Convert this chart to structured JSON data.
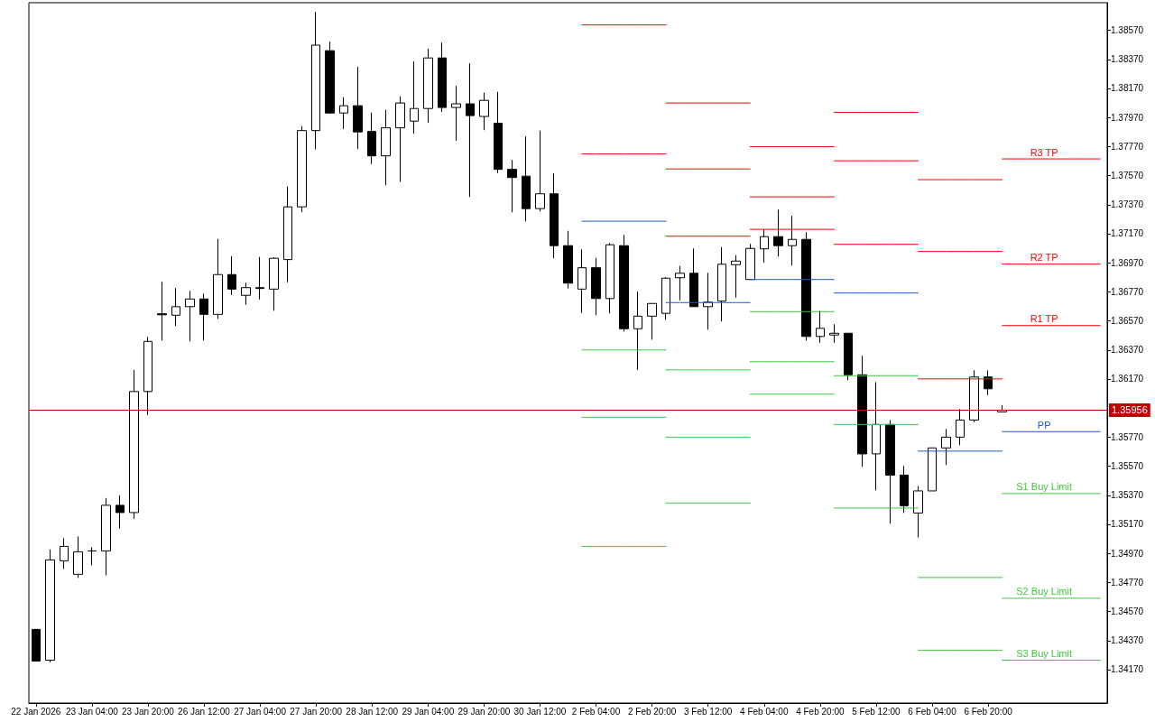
{
  "chart_data": {
    "type": "candlestick",
    "color": "#000000",
    "grid": false,
    "legend": false,
    "marker": "none",
    "line_style": "solid",
    "categories": [
      "22 Jan 2026",
      null,
      null,
      null,
      "23 Jan 04:00",
      null,
      null,
      null,
      "23 Jan 20:00",
      null,
      null,
      null,
      "26 Jan 12:00",
      null,
      null,
      null,
      "27 Jan 04:00",
      null,
      null,
      null,
      "27 Jan 20:00",
      null,
      null,
      null,
      "28 Jan 12:00",
      null,
      null,
      null,
      "29 Jan 04:00",
      null,
      null,
      null,
      "29 Jan 20:00",
      null,
      null,
      null,
      "30 Jan 12:00",
      null,
      null,
      null,
      "2 Feb 04:00",
      null,
      null,
      null,
      "2 Feb 20:00",
      null,
      null,
      null,
      "3 Feb 12:00",
      null,
      null,
      null,
      "4 Feb 04:00",
      null,
      null,
      null,
      "4 Feb 20:00",
      null,
      null,
      null,
      "5 Feb 12:00",
      null,
      null,
      null,
      "6 Feb 04:00",
      null,
      null,
      null,
      "6 Feb 20:00",
      null,
      null,
      null,
      null,
      null,
      null,
      null,
      null
    ],
    "ylim": [
      1.3394,
      1.3876
    ],
    "yticks": [
      {
        "value": 1.3417,
        "label": "1.34170"
      },
      {
        "value": 1.3437,
        "label": "1.34370"
      },
      {
        "value": 1.3457,
        "label": "1.34570"
      },
      {
        "value": 1.3477,
        "label": "1.34770"
      },
      {
        "value": 1.3497,
        "label": "1.34970"
      },
      {
        "value": 1.3517,
        "label": "1.35170"
      },
      {
        "value": 1.3537,
        "label": "1.35370"
      },
      {
        "value": 1.3557,
        "label": "1.35570"
      },
      {
        "value": 1.3577,
        "label": "1.35770"
      },
      {
        "value": 1.3617,
        "label": "1.36170"
      },
      {
        "value": 1.3637,
        "label": "1.36370"
      },
      {
        "value": 1.3657,
        "label": "1.36570"
      },
      {
        "value": 1.3677,
        "label": "1.36770"
      },
      {
        "value": 1.3697,
        "label": "1.36970"
      },
      {
        "value": 1.3717,
        "label": "1.37170"
      },
      {
        "value": 1.3737,
        "label": "1.37370"
      },
      {
        "value": 1.3757,
        "label": "1.37570"
      },
      {
        "value": 1.3777,
        "label": "1.37770"
      },
      {
        "value": 1.3797,
        "label": "1.37970"
      },
      {
        "value": 1.3817,
        "label": "1.38170"
      },
      {
        "value": 1.3837,
        "label": "1.38370"
      },
      {
        "value": 1.3857,
        "label": "1.38570"
      }
    ],
    "ohlc": [
      [
        1.34447,
        1.3445,
        1.34226,
        1.34229
      ],
      [
        1.34235,
        1.34997,
        1.3422,
        1.34925
      ],
      [
        1.34919,
        1.35074,
        1.34863,
        1.35018
      ],
      [
        1.34826,
        1.35087,
        1.34801,
        1.34981
      ],
      [
        1.34987,
        1.35012,
        1.34888,
        1.34987
      ],
      [
        1.34987,
        1.35351,
        1.34819,
        1.35301
      ],
      [
        1.35301,
        1.35369,
        1.3514,
        1.35251
      ],
      [
        1.35251,
        1.36233,
        1.35208,
        1.36084
      ],
      [
        1.36084,
        1.3646,
        1.35923,
        1.36429
      ],
      [
        1.36619,
        1.36839,
        1.36435,
        1.36612
      ],
      [
        1.36609,
        1.36796,
        1.36535,
        1.36668
      ],
      [
        1.36668,
        1.36777,
        1.36429,
        1.36721
      ],
      [
        1.36721,
        1.36758,
        1.36435,
        1.36615
      ],
      [
        1.36615,
        1.37134,
        1.36584,
        1.36889
      ],
      [
        1.36889,
        1.37016,
        1.36749,
        1.36789
      ],
      [
        1.36746,
        1.36833,
        1.36681,
        1.36799
      ],
      [
        1.36799,
        1.3701,
        1.36718,
        1.36793
      ],
      [
        1.36789,
        1.37007,
        1.3664,
        1.37001
      ],
      [
        1.36992,
        1.37495,
        1.36836,
        1.37355
      ],
      [
        1.37355,
        1.37911,
        1.37318,
        1.3788
      ],
      [
        1.3788,
        1.38697,
        1.3775,
        1.38468
      ],
      [
        1.3843,
        1.38492,
        1.37995,
        1.38001
      ],
      [
        1.38001,
        1.3811,
        1.3789,
        1.38051
      ],
      [
        1.38051,
        1.38318,
        1.37753,
        1.37871
      ],
      [
        1.37874,
        1.38004,
        1.3765,
        1.37706
      ],
      [
        1.37706,
        1.38023,
        1.37504,
        1.37899
      ],
      [
        1.37899,
        1.38116,
        1.37526,
        1.3807
      ],
      [
        1.37945,
        1.38356,
        1.37858,
        1.38032
      ],
      [
        1.38032,
        1.38443,
        1.37933,
        1.3838
      ],
      [
        1.3838,
        1.38486,
        1.38008,
        1.38039
      ],
      [
        1.38039,
        1.38188,
        1.37809,
        1.38064
      ],
      [
        1.38064,
        1.38343,
        1.37423,
        1.37983
      ],
      [
        1.37977,
        1.38141,
        1.37883,
        1.38088
      ],
      [
        1.3793,
        1.38147,
        1.37588,
        1.37613
      ],
      [
        1.37613,
        1.37678,
        1.37318,
        1.37557
      ],
      [
        1.37566,
        1.3784,
        1.37256,
        1.37343
      ],
      [
        1.37343,
        1.3788,
        1.37324,
        1.37445
      ],
      [
        1.37445,
        1.37585,
        1.37001,
        1.37088
      ],
      [
        1.37088,
        1.3719,
        1.36793,
        1.3683
      ],
      [
        1.36789,
        1.37063,
        1.36625,
        1.36936
      ],
      [
        1.36936,
        1.37004,
        1.36609,
        1.36724
      ],
      [
        1.36724,
        1.37106,
        1.36622,
        1.37094
      ],
      [
        1.37088,
        1.37162,
        1.36497,
        1.36516
      ],
      [
        1.36516,
        1.36771,
        1.36233,
        1.36603
      ],
      [
        1.36603,
        1.3669,
        1.36441,
        1.3669
      ],
      [
        1.36622,
        1.3687,
        1.36578,
        1.36864
      ],
      [
        1.36867,
        1.36948,
        1.36712,
        1.36898
      ],
      [
        1.36898,
        1.37069,
        1.36668,
        1.36668
      ],
      [
        1.36668,
        1.36901,
        1.3651,
        1.36699
      ],
      [
        1.36706,
        1.37078,
        1.36566,
        1.3696
      ],
      [
        1.36957,
        1.37022,
        1.3673,
        1.36982
      ],
      [
        1.36855,
        1.371,
        1.36855,
        1.37069
      ],
      [
        1.37066,
        1.372,
        1.3697,
        1.3715
      ],
      [
        1.3715,
        1.37336,
        1.37013,
        1.37088
      ],
      [
        1.37088,
        1.37293,
        1.36951,
        1.37131
      ],
      [
        1.37131,
        1.37181,
        1.36435,
        1.36463
      ],
      [
        1.36463,
        1.3664,
        1.3642,
        1.36519
      ],
      [
        1.36473,
        1.36547,
        1.3642,
        1.36485
      ],
      [
        1.36485,
        1.36485,
        1.36162,
        1.36199
      ],
      [
        1.36199,
        1.3633,
        1.35565,
        1.35655
      ],
      [
        1.35655,
        1.36149,
        1.35404,
        1.35857
      ],
      [
        1.35857,
        1.35888,
        1.35174,
        1.35509
      ],
      [
        1.35509,
        1.35571,
        1.35248,
        1.35298
      ],
      [
        1.35248,
        1.35432,
        1.3508,
        1.354
      ],
      [
        1.354,
        1.35696,
        1.354,
        1.35696
      ],
      [
        1.35696,
        1.35826,
        1.35578,
        1.3577
      ],
      [
        1.3577,
        1.35963,
        1.35714,
        1.35888
      ],
      [
        1.35888,
        1.3623,
        1.35873,
        1.36184
      ],
      [
        1.36184,
        1.3623,
        1.36059,
        1.36103
      ],
      [
        1.35944,
        1.35991,
        1.35944,
        1.35956
      ],
      null,
      null,
      null,
      null,
      null,
      null,
      null
    ],
    "series": [
      {
        "type": "line",
        "color": "#ff0000",
        "values": [
          null,
          null,
          null,
          null,
          null,
          null,
          null,
          null,
          null,
          null,
          null,
          null,
          null,
          null,
          null,
          null,
          null,
          null,
          null,
          null,
          null,
          null,
          null,
          null,
          null,
          null,
          null,
          null,
          null,
          null,
          null,
          null,
          null,
          null,
          null,
          null,
          null,
          null,
          null,
          null,
          null,
          null,
          null,
          null,
          null,
          null,
          null,
          null,
          null,
          null,
          null,
          1.37769,
          1.37769,
          1.37769,
          1.37769,
          1.37769,
          1.37769,
          1.37769,
          null,
          null,
          null,
          null,
          null,
          1.37542,
          1.37542,
          1.37542,
          1.37542,
          1.37542,
          1.37542,
          1.37542,
          null,
          null,
          null,
          null,
          null,
          null,
          null
        ]
      },
      {
        "type": "line",
        "name": "R3 TP",
        "color": "#ff0000",
        "values": [
          null,
          null,
          null,
          null,
          null,
          null,
          null,
          null,
          null,
          null,
          null,
          null,
          null,
          null,
          null,
          null,
          null,
          null,
          null,
          null,
          null,
          null,
          null,
          null,
          null,
          null,
          null,
          null,
          null,
          null,
          null,
          null,
          null,
          null,
          null,
          null,
          null,
          null,
          null,
          null,
          null,
          null,
          null,
          null,
          null,
          1.3807,
          1.3807,
          1.3807,
          1.3807,
          1.3807,
          1.3807,
          1.3807,
          null,
          null,
          null,
          null,
          null,
          1.38005,
          1.38005,
          1.38005,
          1.38005,
          1.38005,
          1.38005,
          1.38005,
          null,
          null,
          null,
          null,
          null,
          1.37685,
          1.37685,
          1.37685,
          1.37685,
          1.37685,
          1.37685,
          1.37685,
          1.37685
        ]
      },
      {
        "type": "line",
        "color": "#ff0000",
        "values": [
          null,
          null,
          null,
          null,
          null,
          null,
          null,
          null,
          null,
          null,
          null,
          null,
          null,
          null,
          null,
          null,
          null,
          null,
          null,
          null,
          null,
          null,
          null,
          null,
          null,
          null,
          null,
          null,
          null,
          null,
          null,
          null,
          null,
          null,
          null,
          null,
          null,
          null,
          null,
          1.38607,
          1.38607,
          1.38607,
          1.38607,
          1.38607,
          1.38607,
          1.38607,
          null,
          null,
          null,
          null,
          null,
          1.37424,
          1.37424,
          1.37424,
          1.37424,
          1.37424,
          1.37424,
          1.37424,
          null,
          null,
          null,
          null,
          null,
          1.37048,
          1.37048,
          1.37048,
          1.37048,
          1.37048,
          1.37048,
          1.37048,
          null,
          null,
          null,
          null,
          null,
          null,
          null
        ]
      },
      {
        "type": "line",
        "name": "R2 TP",
        "color": "#ff0000",
        "values": [
          null,
          null,
          null,
          null,
          null,
          null,
          null,
          null,
          null,
          null,
          null,
          null,
          null,
          null,
          null,
          null,
          null,
          null,
          null,
          null,
          null,
          null,
          null,
          null,
          null,
          null,
          null,
          null,
          null,
          null,
          null,
          null,
          null,
          null,
          null,
          null,
          null,
          null,
          null,
          null,
          null,
          null,
          null,
          null,
          null,
          1.37616,
          1.37616,
          1.37616,
          1.37616,
          1.37616,
          1.37616,
          1.37616,
          null,
          null,
          null,
          null,
          null,
          1.37672,
          1.37672,
          1.37672,
          1.37672,
          1.37672,
          1.37672,
          1.37672,
          null,
          null,
          null,
          null,
          null,
          1.36961,
          1.36961,
          1.36961,
          1.36961,
          1.36961,
          1.36961,
          1.36961,
          1.36961
        ]
      },
      {
        "type": "line",
        "color": "#ff0000",
        "values": [
          null,
          null,
          null,
          null,
          null,
          null,
          null,
          null,
          null,
          null,
          null,
          null,
          null,
          null,
          null,
          null,
          null,
          null,
          null,
          null,
          null,
          null,
          null,
          null,
          null,
          null,
          null,
          null,
          null,
          null,
          null,
          null,
          null,
          null,
          null,
          null,
          null,
          null,
          null,
          1.37719,
          1.37719,
          1.37719,
          1.37719,
          1.37719,
          1.37719,
          1.37719,
          null,
          null,
          null,
          null,
          null,
          1.372,
          1.372,
          1.372,
          1.372,
          1.372,
          1.372,
          1.372,
          null,
          null,
          null,
          null,
          null,
          1.36171,
          1.36171,
          1.36171,
          1.36171,
          1.36171,
          1.36171,
          1.36171,
          null,
          null,
          null,
          null,
          null,
          null,
          null
        ]
      },
      {
        "type": "line",
        "name": "R1 TP",
        "color": "#ff0000",
        "values": [
          null,
          null,
          null,
          null,
          null,
          null,
          null,
          null,
          null,
          null,
          null,
          null,
          null,
          null,
          null,
          null,
          null,
          null,
          null,
          null,
          null,
          null,
          null,
          null,
          null,
          null,
          null,
          null,
          null,
          null,
          null,
          null,
          null,
          null,
          null,
          null,
          null,
          null,
          null,
          null,
          null,
          null,
          null,
          null,
          null,
          1.37153,
          1.37153,
          1.37153,
          1.37153,
          1.37153,
          1.37153,
          1.37153,
          null,
          null,
          null,
          null,
          null,
          1.37097,
          1.37097,
          1.37097,
          1.37097,
          1.37097,
          1.37097,
          1.37097,
          null,
          null,
          null,
          null,
          null,
          1.36538,
          1.36538,
          1.36538,
          1.36538,
          1.36538,
          1.36538,
          1.36538,
          1.36538
        ]
      },
      {
        "type": "line",
        "color": "#1e5ad2",
        "values": [
          null,
          null,
          null,
          null,
          null,
          null,
          null,
          null,
          null,
          null,
          null,
          null,
          null,
          null,
          null,
          null,
          null,
          null,
          null,
          null,
          null,
          null,
          null,
          null,
          null,
          null,
          null,
          null,
          null,
          null,
          null,
          null,
          null,
          null,
          null,
          null,
          null,
          null,
          null,
          1.37256,
          1.37256,
          1.37256,
          1.37256,
          1.37256,
          1.37256,
          1.37256,
          null,
          null,
          null,
          null,
          null,
          1.36855,
          1.36855,
          1.36855,
          1.36855,
          1.36855,
          1.36855,
          1.36855,
          null,
          null,
          null,
          null,
          null,
          1.35674,
          1.35674,
          1.35674,
          1.35674,
          1.35674,
          1.35674,
          1.35674,
          null,
          null,
          null,
          null,
          null,
          null,
          null
        ]
      },
      {
        "type": "line",
        "name": "PP",
        "color": "#1e5ad2",
        "values": [
          null,
          null,
          null,
          null,
          null,
          null,
          null,
          null,
          null,
          null,
          null,
          null,
          null,
          null,
          null,
          null,
          null,
          null,
          null,
          null,
          null,
          null,
          null,
          null,
          null,
          null,
          null,
          null,
          null,
          null,
          null,
          null,
          null,
          null,
          null,
          null,
          null,
          null,
          null,
          null,
          null,
          null,
          null,
          null,
          null,
          1.36696,
          1.36696,
          1.36696,
          1.36696,
          1.36696,
          1.36696,
          1.36696,
          null,
          null,
          null,
          null,
          null,
          1.36762,
          1.36762,
          1.36762,
          1.36762,
          1.36762,
          1.36762,
          1.36762,
          null,
          null,
          null,
          null,
          null,
          1.35808,
          1.35808,
          1.35808,
          1.35808,
          1.35808,
          1.35808,
          1.35808,
          1.35808
        ]
      },
      {
        "type": "line",
        "color": "#3cc83c",
        "values": [
          null,
          null,
          null,
          null,
          null,
          null,
          null,
          null,
          null,
          null,
          null,
          null,
          null,
          null,
          null,
          null,
          null,
          null,
          null,
          null,
          null,
          null,
          null,
          null,
          null,
          null,
          null,
          null,
          null,
          null,
          null,
          null,
          null,
          null,
          null,
          null,
          null,
          null,
          null,
          1.3637,
          1.3637,
          1.3637,
          1.3637,
          1.3637,
          1.3637,
          1.3637,
          null,
          null,
          null,
          null,
          null,
          1.36634,
          1.36634,
          1.36634,
          1.36634,
          1.36634,
          1.36634,
          1.36634,
          null,
          null,
          null,
          null,
          null,
          1.34804,
          1.34804,
          1.34804,
          1.34804,
          1.34804,
          1.34804,
          1.34804,
          null,
          null,
          null,
          null,
          null,
          null,
          null
        ]
      },
      {
        "type": "line",
        "name": "S1 Buy Limit",
        "color": "#3cc83c",
        "values": [
          null,
          null,
          null,
          null,
          null,
          null,
          null,
          null,
          null,
          null,
          null,
          null,
          null,
          null,
          null,
          null,
          null,
          null,
          null,
          null,
          null,
          null,
          null,
          null,
          null,
          null,
          null,
          null,
          null,
          null,
          null,
          null,
          null,
          null,
          null,
          null,
          null,
          null,
          null,
          null,
          null,
          null,
          null,
          null,
          null,
          1.36233,
          1.36233,
          1.36233,
          1.36233,
          1.36233,
          1.36233,
          1.36233,
          null,
          null,
          null,
          null,
          null,
          1.36193,
          1.36193,
          1.36193,
          1.36193,
          1.36193,
          1.36193,
          1.36193,
          null,
          null,
          null,
          null,
          null,
          1.35382,
          1.35382,
          1.35382,
          1.35382,
          1.35382,
          1.35382,
          1.35382,
          1.35382
        ]
      },
      {
        "type": "line",
        "color": "#3cc83c",
        "values": [
          null,
          null,
          null,
          null,
          null,
          null,
          null,
          null,
          null,
          null,
          null,
          null,
          null,
          null,
          null,
          null,
          null,
          null,
          null,
          null,
          null,
          null,
          null,
          null,
          null,
          null,
          null,
          null,
          null,
          null,
          null,
          null,
          null,
          null,
          null,
          null,
          null,
          null,
          null,
          1.35907,
          1.35907,
          1.35907,
          1.35907,
          1.35907,
          1.35907,
          1.35907,
          null,
          null,
          null,
          null,
          null,
          1.36289,
          1.36289,
          1.36289,
          1.36289,
          1.36289,
          1.36289,
          1.36289,
          null,
          null,
          null,
          null,
          null,
          1.34304,
          1.34304,
          1.34304,
          1.34304,
          1.34304,
          1.34304,
          1.34304,
          null,
          null,
          null,
          null,
          null,
          null,
          null
        ]
      },
      {
        "type": "line",
        "name": "S2 Buy Limit",
        "color": "#3cc83c",
        "values": [
          null,
          null,
          null,
          null,
          null,
          null,
          null,
          null,
          null,
          null,
          null,
          null,
          null,
          null,
          null,
          null,
          null,
          null,
          null,
          null,
          null,
          null,
          null,
          null,
          null,
          null,
          null,
          null,
          null,
          null,
          null,
          null,
          null,
          null,
          null,
          null,
          null,
          null,
          null,
          null,
          null,
          null,
          null,
          null,
          null,
          1.3577,
          1.3577,
          1.3577,
          1.3577,
          1.3577,
          1.3577,
          1.3577,
          null,
          null,
          null,
          null,
          null,
          1.35857,
          1.35857,
          1.35857,
          1.35857,
          1.35857,
          1.35857,
          1.35857,
          null,
          null,
          null,
          null,
          null,
          1.34661,
          1.34661,
          1.34661,
          1.34661,
          1.34661,
          1.34661,
          1.34661,
          1.34661
        ]
      },
      {
        "type": "line",
        "color": "#3cc83c",
        "values": [
          null,
          null,
          null,
          null,
          null,
          null,
          null,
          null,
          null,
          null,
          null,
          null,
          null,
          null,
          null,
          null,
          null,
          null,
          null,
          null,
          null,
          null,
          null,
          null,
          null,
          null,
          null,
          null,
          null,
          null,
          null,
          null,
          null,
          null,
          null,
          null,
          null,
          null,
          null,
          1.35018,
          1.35018,
          1.35018,
          1.35018,
          1.35018,
          1.35018,
          1.35018,
          null,
          null,
          null,
          null,
          null,
          1.36066,
          1.36066,
          1.36066,
          1.36066,
          1.36066,
          1.36066,
          1.36066,
          null,
          null,
          null,
          null,
          null,
          null,
          null,
          null,
          null,
          null,
          null,
          null,
          null,
          null,
          null,
          null,
          null,
          null,
          null
        ]
      },
      {
        "type": "line",
        "name": "S3 Buy Limit",
        "color": "#3cc83c",
        "values": [
          null,
          null,
          null,
          null,
          null,
          null,
          null,
          null,
          null,
          null,
          null,
          null,
          null,
          null,
          null,
          null,
          null,
          null,
          null,
          null,
          null,
          null,
          null,
          null,
          null,
          null,
          null,
          null,
          null,
          null,
          null,
          null,
          null,
          null,
          null,
          null,
          null,
          null,
          null,
          null,
          null,
          null,
          null,
          null,
          null,
          1.35317,
          1.35317,
          1.35317,
          1.35317,
          1.35317,
          1.35317,
          1.35317,
          null,
          null,
          null,
          null,
          null,
          1.35282,
          1.35282,
          1.35282,
          1.35282,
          1.35282,
          1.35282,
          1.35282,
          null,
          null,
          null,
          null,
          null,
          1.34235,
          1.34235,
          1.34235,
          1.34235,
          1.34235,
          1.34235,
          1.34235,
          1.34235
        ]
      }
    ],
    "ref_lines": [
      {
        "axis": "y",
        "value": 1.35956,
        "label": "1.35956",
        "color": "#c00000"
      }
    ]
  }
}
